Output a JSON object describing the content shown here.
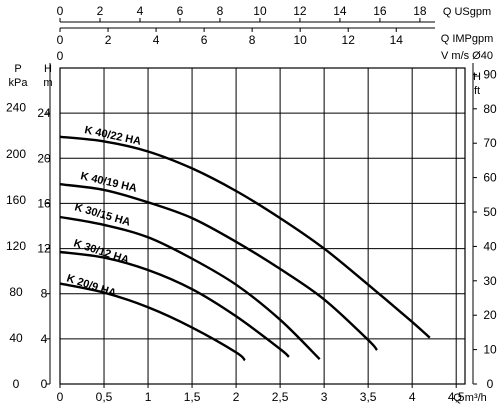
{
  "chart_data": {
    "type": "line",
    "x_axis": {
      "label": "Q m³/h",
      "range": [
        0,
        4.6
      ],
      "ticks": [
        "0",
        "0,5",
        "1",
        "1,5",
        "2",
        "2,5",
        "3",
        "3,5",
        "4",
        "4,5"
      ]
    },
    "top_axes": [
      {
        "label": "Q USgpm",
        "ticks": [
          "0",
          "2",
          "4",
          "6",
          "8",
          "10",
          "12",
          "14",
          "16",
          "18"
        ]
      },
      {
        "label": "Q IMPgpm",
        "ticks": [
          "0",
          "2",
          "4",
          "6",
          "8",
          "10",
          "12",
          "14"
        ]
      },
      {
        "label": "V m/s Ø40",
        "ticks": [
          "0"
        ]
      }
    ],
    "y_left_m": {
      "label": "H\nm",
      "range": [
        0,
        28
      ],
      "ticks": [
        "0",
        "4",
        "8",
        "12",
        "16",
        "20",
        "24"
      ]
    },
    "y_left_kpa": {
      "label": "P\nkPa",
      "ticks": [
        "0",
        "40",
        "80",
        "120",
        "160",
        "200",
        "240"
      ]
    },
    "y_right_ft": {
      "label": "H\nft",
      "ticks": [
        "0",
        "10",
        "20",
        "30",
        "40",
        "50",
        "60",
        "70",
        "80",
        "90"
      ]
    },
    "grid": true,
    "series": [
      {
        "name": "K 40/22 HA",
        "x": [
          0,
          0.5,
          1,
          1.5,
          2,
          2.5,
          3,
          3.5,
          4,
          4.2
        ],
        "y": [
          21.9,
          21.5,
          20.6,
          19.1,
          17.1,
          14.7,
          12.0,
          8.8,
          5.5,
          4.1
        ]
      },
      {
        "name": "K 40/19 HA",
        "x": [
          0,
          0.5,
          1,
          1.5,
          2,
          2.5,
          3,
          3.5,
          3.6
        ],
        "y": [
          17.7,
          17.2,
          16.1,
          14.7,
          12.6,
          10.2,
          7.5,
          3.9,
          3.0
        ]
      },
      {
        "name": "K 30/15 HA",
        "x": [
          0,
          0.5,
          1,
          1.5,
          2,
          2.5,
          2.95
        ],
        "y": [
          14.8,
          14.1,
          13.0,
          11.1,
          8.8,
          5.7,
          2.2
        ]
      },
      {
        "name": "K 30/12 HA",
        "x": [
          0,
          0.5,
          1,
          1.5,
          2,
          2.5,
          2.6
        ],
        "y": [
          11.7,
          11.2,
          10.1,
          8.4,
          6.0,
          3.1,
          2.4
        ]
      },
      {
        "name": "K 20/9 HA",
        "x": [
          0,
          0.5,
          1,
          1.5,
          2,
          2.1
        ],
        "y": [
          8.9,
          8.1,
          6.8,
          5.0,
          2.8,
          2.1
        ]
      }
    ]
  }
}
